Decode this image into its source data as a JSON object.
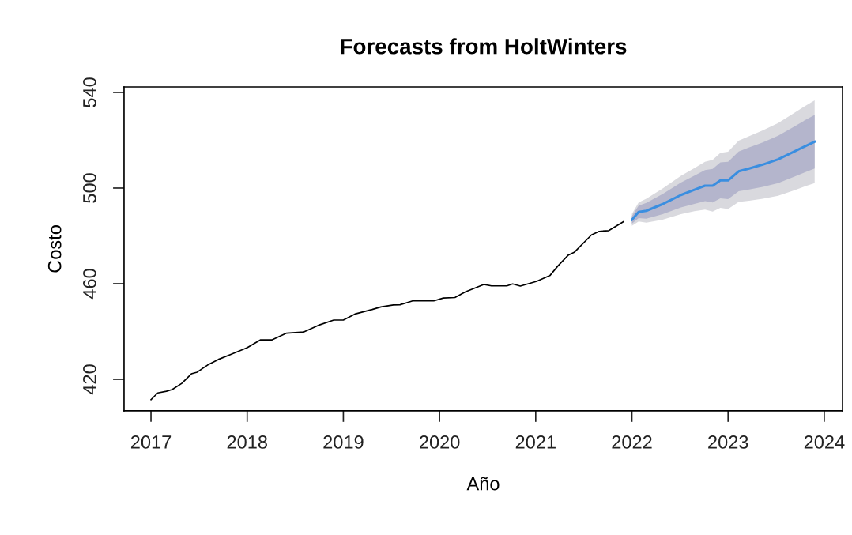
{
  "chart_data": {
    "type": "line",
    "title": "Forecasts from HoltWinters",
    "xlabel": "Año",
    "ylabel": "Costo",
    "xlim": [
      2016.72,
      2024.19
    ],
    "xticks": [
      2017,
      2018,
      2019,
      2020,
      2021,
      2022,
      2023,
      2024
    ],
    "ylim": [
      406.8,
      542.3
    ],
    "yticks": [
      420,
      460,
      500,
      540
    ],
    "grid": false,
    "marker": "none",
    "line_style": "solid",
    "series": [
      {
        "color": "#000000",
        "x": [
          2017.0,
          2017.07,
          2017.16,
          2017.22,
          2017.32,
          2017.42,
          2017.48,
          2017.59,
          2017.7,
          2017.84,
          2018.0,
          2018.14,
          2018.26,
          2018.41,
          2018.59,
          2018.74,
          2018.9,
          2019.0,
          2019.12,
          2019.3,
          2019.39,
          2019.52,
          2019.59,
          2019.72,
          2019.94,
          2020.04,
          2020.16,
          2020.27,
          2020.46,
          2020.54,
          2020.7,
          2020.76,
          2020.84,
          2021.01,
          2021.15,
          2021.23,
          2021.34,
          2021.4,
          2021.58,
          2021.66,
          2021.76,
          2021.91
        ],
        "values": [
          411.5,
          414.3,
          415,
          415.7,
          418.3,
          422.3,
          423,
          426,
          428.3,
          430.6,
          433.2,
          436.5,
          436.5,
          439.3,
          439.8,
          442.6,
          444.8,
          444.8,
          447.3,
          449.2,
          450.3,
          451.1,
          451.2,
          452.8,
          452.8,
          454,
          454.2,
          456.6,
          459.7,
          459.1,
          459.1,
          459.9,
          459,
          461,
          463.5,
          467.4,
          472,
          473.1,
          480.4,
          481.9,
          482.2,
          485.9
        ]
      },
      {
        "color": "#3a8ee0",
        "x": [
          2022.0,
          2022.07,
          2022.15,
          2022.32,
          2022.51,
          2022.65,
          2022.76,
          2022.84,
          2022.92,
          2023.0,
          2023.11,
          2023.22,
          2023.36,
          2023.52,
          2023.69,
          2023.8,
          2023.9
        ],
        "values": [
          486.7,
          490.0,
          490.5,
          493.3,
          497.1,
          499.3,
          501.0,
          501.0,
          503.2,
          503.2,
          507.0,
          508.2,
          509.8,
          512.0,
          515.3,
          517.5,
          519.4
        ],
        "lower": [
          484.2,
          486.0,
          485.5,
          486.8,
          489.1,
          490.3,
          491.0,
          490.2,
          491.7,
          491.2,
          494.2,
          494.7,
          495.5,
          496.8,
          499.1,
          500.7,
          502.1
        ],
        "upper": [
          489.2,
          494.0,
          495.5,
          499.8,
          505.1,
          508.3,
          511.0,
          511.8,
          514.7,
          515.2,
          519.8,
          521.7,
          524.1,
          527.2,
          531.5,
          534.3,
          536.7
        ]
      },
      {
        "x": [
          2022.0,
          2022.07,
          2022.15,
          2022.32,
          2022.51,
          2022.65,
          2022.76,
          2022.84,
          2022.92,
          2023.0,
          2023.11,
          2023.22,
          2023.36,
          2023.52,
          2023.69,
          2023.8,
          2023.9
        ],
        "values": [
          null,
          null,
          null,
          null,
          null,
          null,
          null,
          null,
          null,
          null,
          null,
          null,
          null,
          null,
          null,
          null,
          null
        ],
        "lower": [
          485.1,
          487.4,
          487.2,
          489.1,
          491.9,
          493.4,
          494.5,
          494.0,
          495.7,
          495.4,
          498.7,
          499.4,
          500.5,
          502.1,
          504.8,
          506.6,
          508.2
        ],
        "upper": [
          488.3,
          492.6,
          493.8,
          497.5,
          502.3,
          505.2,
          507.5,
          508.0,
          510.7,
          511.0,
          515.3,
          517.0,
          519.1,
          521.9,
          525.8,
          528.4,
          530.6
        ]
      }
    ]
  }
}
